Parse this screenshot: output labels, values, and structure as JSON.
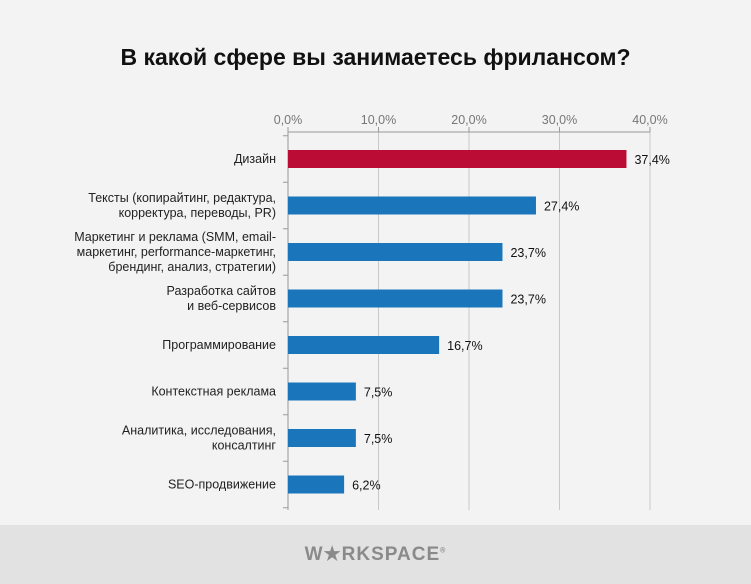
{
  "chart_data": {
    "type": "bar",
    "orientation": "horizontal",
    "title": "В какой сфере вы занимаетесь фрилансом?",
    "categories": [
      [
        "Дизайн"
      ],
      [
        "Тексты (копирайтинг, редактура,",
        "корректура, переводы, PR)"
      ],
      [
        "Маркетинг и реклама (SMM, email-",
        "маркетинг, performance-маркетинг,",
        "брендинг, анализ, стратегии)"
      ],
      [
        "Разработка сайтов",
        "и веб-сервисов"
      ],
      [
        "Программирование"
      ],
      [
        "Контекстная реклама"
      ],
      [
        "Аналитика, исследования,",
        "консалтинг"
      ],
      [
        "SEO-продвижение"
      ]
    ],
    "values": [
      37.4,
      27.4,
      23.7,
      23.7,
      16.7,
      7.5,
      7.5,
      6.2
    ],
    "value_labels": [
      "37,4%",
      "27,4%",
      "23,7%",
      "23,7%",
      "16,7%",
      "7,5%",
      "7,5%",
      "6,2%"
    ],
    "xlim": [
      0,
      40
    ],
    "xticks": [
      0,
      10,
      20,
      30,
      40
    ],
    "xtick_labels": [
      "0,0%",
      "10,0%",
      "20,0%",
      "30,0%",
      "40,0%"
    ],
    "axis_position": "top",
    "grid": true,
    "colors": {
      "highlight": "#bb0c35",
      "default": "#1b75bb"
    },
    "highlight_index": 0
  },
  "footer": {
    "logo": "WORKSPACE"
  }
}
